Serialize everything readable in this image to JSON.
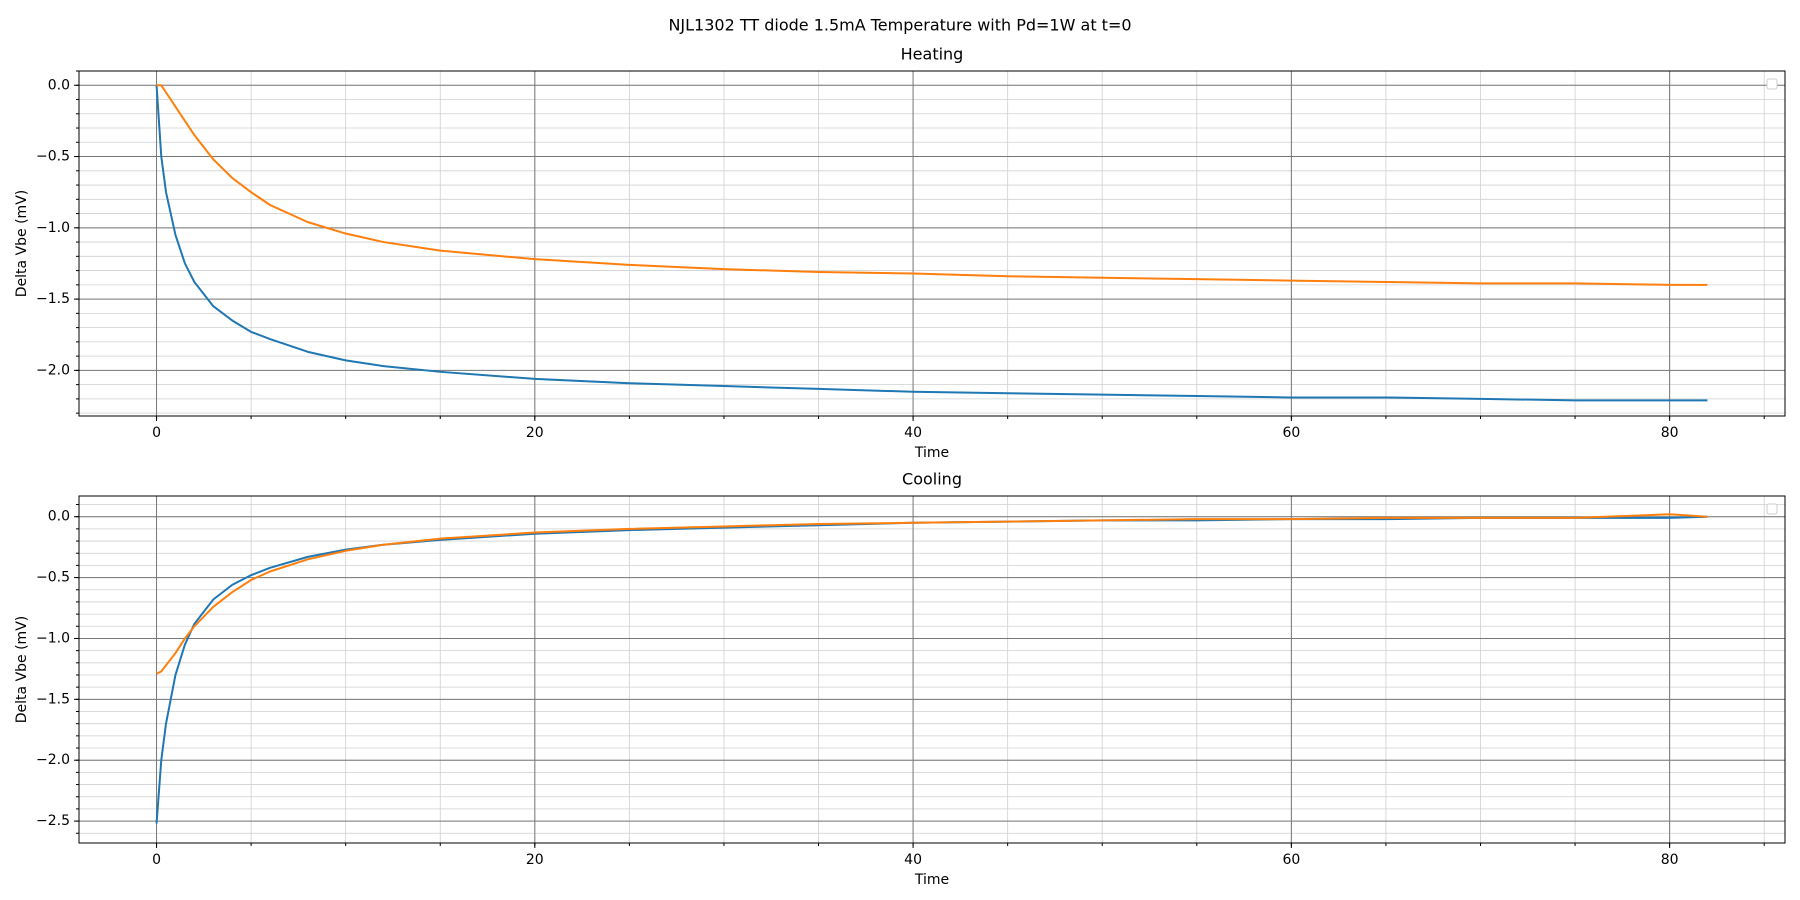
{
  "title": "NJL1302 TT diode 1.5mA Temperature with Pd=1W at t=0",
  "chart_data": [
    {
      "type": "line",
      "title": "Heating",
      "xlabel": "Time",
      "ylabel": "Delta Vbe (mV)",
      "x": [
        0,
        0.25,
        0.5,
        1,
        1.5,
        2,
        3,
        4,
        5,
        6,
        8,
        10,
        12,
        15,
        20,
        25,
        30,
        35,
        40,
        45,
        50,
        55,
        60,
        65,
        70,
        75,
        80,
        82
      ],
      "series": [
        {
          "color": "#1f77b4",
          "values": [
            0,
            -0.5,
            -0.75,
            -1.05,
            -1.25,
            -1.38,
            -1.55,
            -1.65,
            -1.73,
            -1.78,
            -1.87,
            -1.93,
            -1.97,
            -2.01,
            -2.06,
            -2.09,
            -2.11,
            -2.13,
            -2.15,
            -2.16,
            -2.17,
            -2.18,
            -2.19,
            -2.19,
            -2.2,
            -2.21,
            -2.21,
            -2.21
          ]
        },
        {
          "color": "#ff7f0e",
          "values": [
            0,
            0,
            -0.05,
            -0.15,
            -0.25,
            -0.35,
            -0.52,
            -0.65,
            -0.75,
            -0.84,
            -0.96,
            -1.04,
            -1.1,
            -1.16,
            -1.22,
            -1.26,
            -1.29,
            -1.31,
            -1.32,
            -1.34,
            -1.35,
            -1.36,
            -1.37,
            -1.38,
            -1.39,
            -1.39,
            -1.4,
            -1.4
          ]
        }
      ],
      "xlim": [
        -4.1,
        86.1
      ],
      "ylim": [
        -2.32,
        0.1
      ],
      "xticks": [
        0,
        20,
        40,
        60,
        80
      ],
      "yticks": [
        {
          "value": -2.0,
          "label": "−2.0"
        },
        {
          "value": -1.5,
          "label": "−1.5"
        },
        {
          "value": -1.0,
          "label": "−1.0"
        },
        {
          "value": -0.5,
          "label": "−0.5"
        },
        {
          "value": 0,
          "label": "0.0"
        }
      ],
      "xminorticks": [
        0,
        5,
        10,
        15,
        20,
        25,
        30,
        35,
        40,
        45,
        50,
        55,
        60,
        65,
        70,
        75,
        80,
        85
      ],
      "yminorticks": [
        -2.3,
        -2.2,
        -2.1,
        -2.0,
        -1.9,
        -1.8,
        -1.7,
        -1.6,
        -1.5,
        -1.4,
        -1.3,
        -1.2,
        -1.1,
        -1.0,
        -0.9,
        -0.8,
        -0.7,
        -0.6,
        -0.5,
        -0.4,
        -0.3,
        -0.2,
        -0.1,
        0,
        0.1
      ],
      "grid": true
    },
    {
      "type": "line",
      "title": "Cooling",
      "xlabel": "Time",
      "ylabel": "Delta Vbe (mV)",
      "x": [
        0,
        0.25,
        0.5,
        1,
        1.5,
        2,
        3,
        4,
        5,
        6,
        8,
        10,
        12,
        15,
        20,
        25,
        30,
        35,
        40,
        45,
        50,
        55,
        60,
        65,
        70,
        75,
        80,
        82
      ],
      "series": [
        {
          "color": "#1f77b4",
          "values": [
            -2.52,
            -2.0,
            -1.7,
            -1.3,
            -1.05,
            -0.88,
            -0.68,
            -0.56,
            -0.48,
            -0.42,
            -0.33,
            -0.27,
            -0.23,
            -0.19,
            -0.14,
            -0.11,
            -0.09,
            -0.07,
            -0.05,
            -0.04,
            -0.03,
            -0.03,
            -0.02,
            -0.02,
            -0.01,
            -0.01,
            -0.01,
            0
          ]
        },
        {
          "color": "#ff7f0e",
          "values": [
            -1.29,
            -1.27,
            -1.22,
            -1.12,
            -1.0,
            -0.9,
            -0.74,
            -0.62,
            -0.52,
            -0.45,
            -0.35,
            -0.28,
            -0.23,
            -0.18,
            -0.13,
            -0.1,
            -0.08,
            -0.06,
            -0.05,
            -0.04,
            -0.03,
            -0.02,
            -0.02,
            -0.01,
            -0.01,
            -0.01,
            0.02,
            0
          ]
        }
      ],
      "xlim": [
        -4.1,
        86.1
      ],
      "ylim": [
        -2.68,
        0.17
      ],
      "xticks": [
        0,
        20,
        40,
        60,
        80
      ],
      "yticks": [
        {
          "value": -2.5,
          "label": "−2.5"
        },
        {
          "value": -2.0,
          "label": "−2.0"
        },
        {
          "value": -1.5,
          "label": "−1.5"
        },
        {
          "value": -1.0,
          "label": "−1.0"
        },
        {
          "value": -0.5,
          "label": "−0.5"
        },
        {
          "value": 0,
          "label": "0.0"
        }
      ],
      "xminorticks": [
        0,
        5,
        10,
        15,
        20,
        25,
        30,
        35,
        40,
        45,
        50,
        55,
        60,
        65,
        70,
        75,
        80,
        85
      ],
      "yminorticks": [
        -2.6,
        -2.5,
        -2.4,
        -2.3,
        -2.2,
        -2.1,
        -2.0,
        -1.9,
        -1.8,
        -1.7,
        -1.6,
        -1.5,
        -1.4,
        -1.3,
        -1.2,
        -1.1,
        -1.0,
        -0.9,
        -0.8,
        -0.7,
        -0.6,
        -0.5,
        -0.4,
        -0.3,
        -0.2,
        -0.1,
        0,
        0.1
      ],
      "grid": true
    }
  ]
}
